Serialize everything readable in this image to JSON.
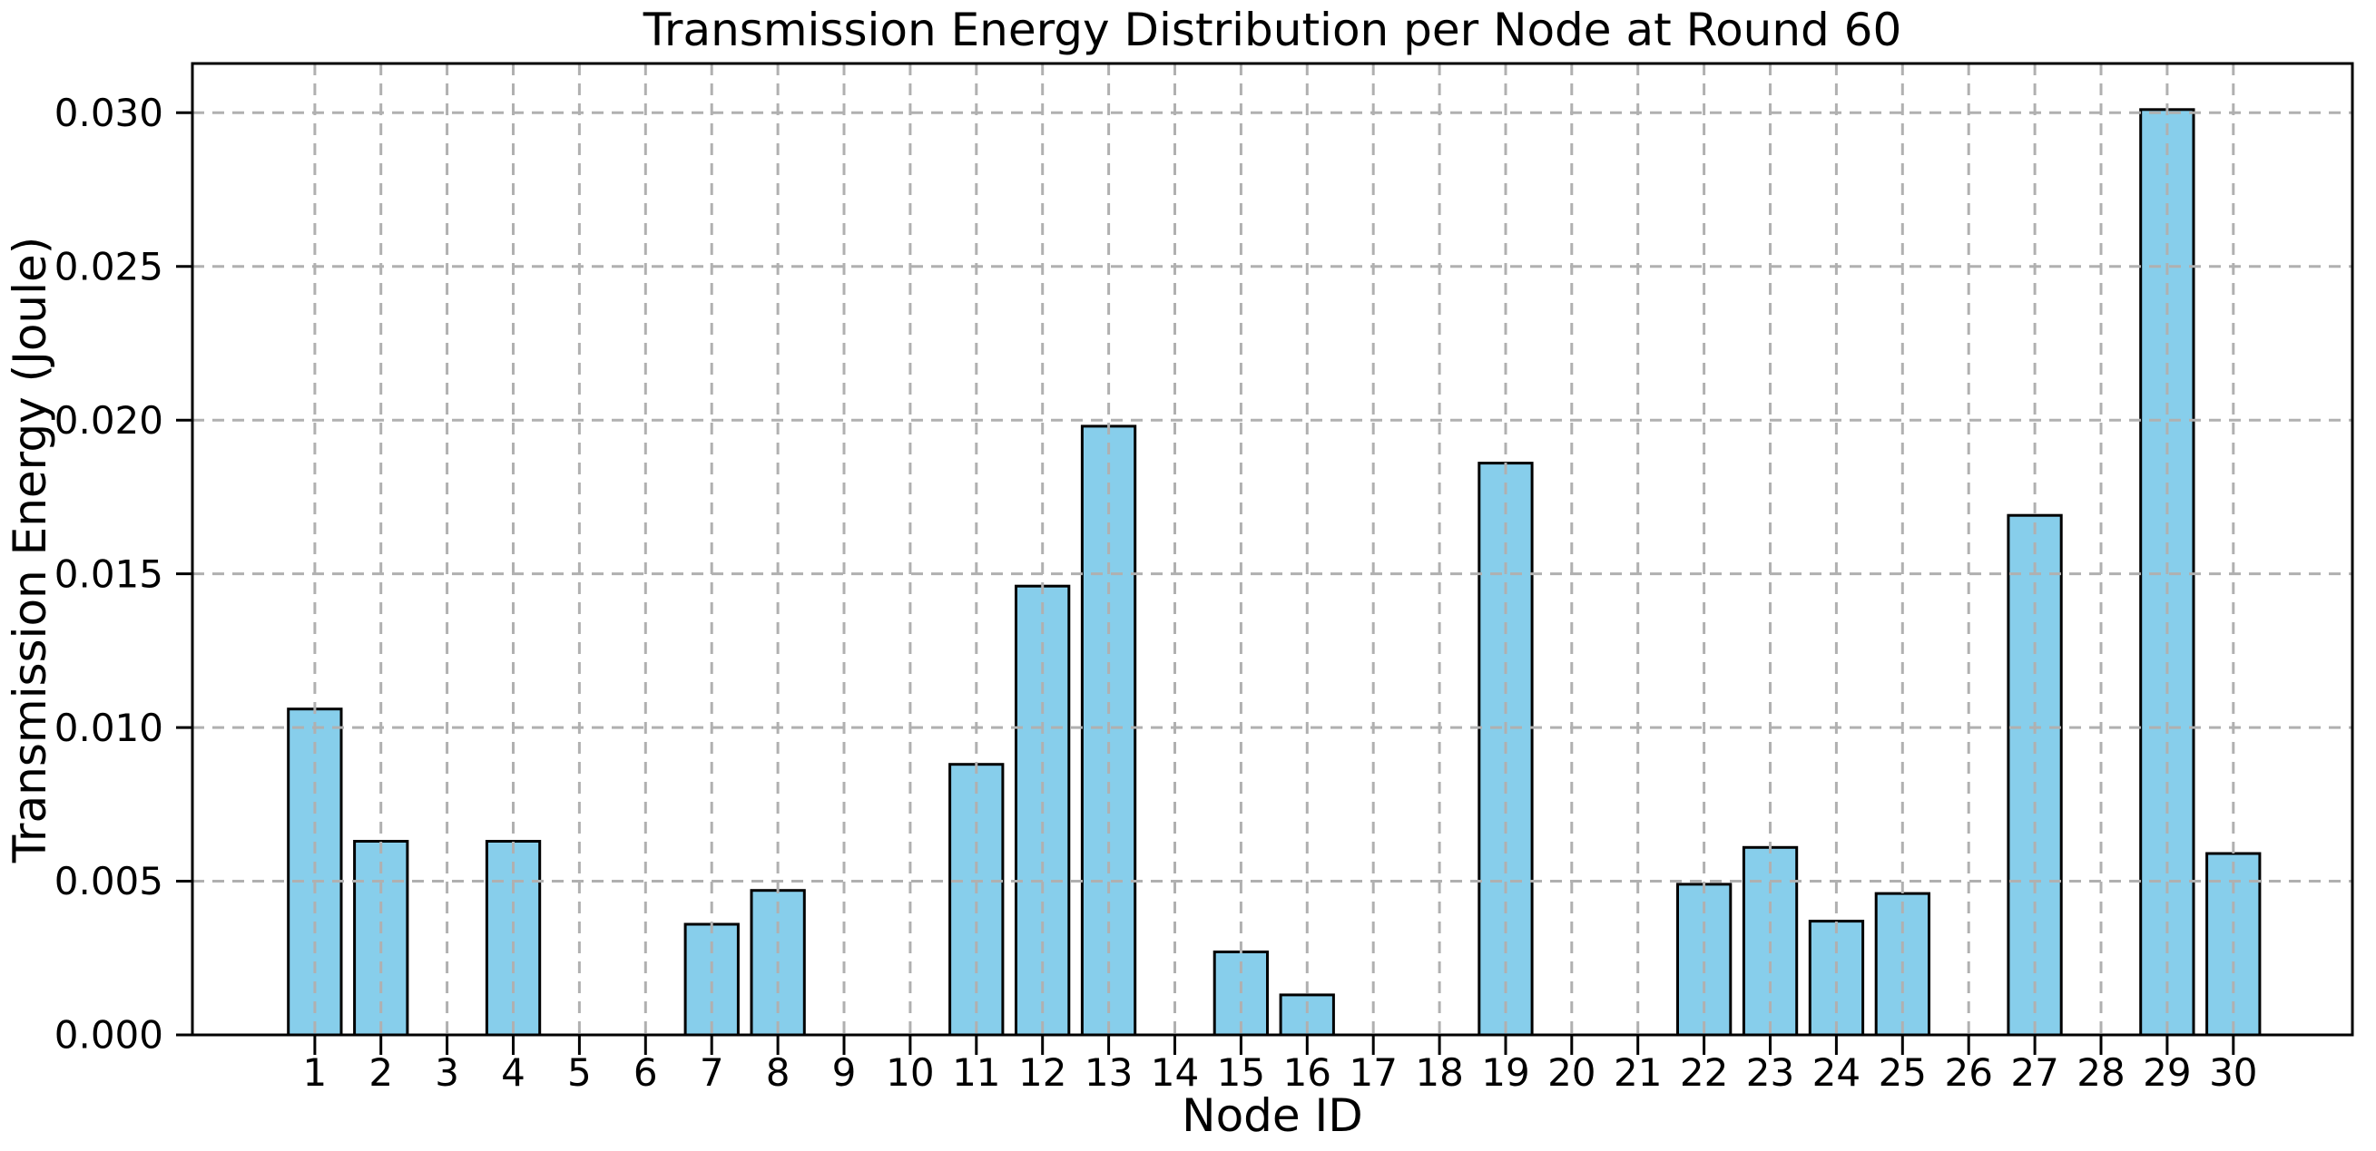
{
  "figure": {
    "title": "Transmission Energy Distribution per Node at Round 60",
    "xlabel": "Node ID",
    "ylabel": "Transmission Energy (Joule)"
  },
  "chart_data": {
    "type": "bar",
    "title": "Transmission Energy Distribution per Node at Round 60",
    "xlabel": "Node ID",
    "ylabel": "Transmission Energy (Joule)",
    "categories": [
      1,
      2,
      3,
      4,
      5,
      6,
      7,
      8,
      9,
      10,
      11,
      12,
      13,
      14,
      15,
      16,
      17,
      18,
      19,
      20,
      21,
      22,
      23,
      24,
      25,
      26,
      27,
      28,
      29,
      30
    ],
    "values": [
      0.0106,
      0.0063,
      0,
      0.0063,
      0,
      0,
      0.0036,
      0.0047,
      0,
      0,
      0.0088,
      0.0146,
      0.0198,
      0,
      0.0027,
      0.0013,
      0,
      0,
      0.0186,
      0,
      0,
      0.0049,
      0.0061,
      0.0037,
      0.0046,
      0,
      0.0169,
      0,
      0.0301,
      0.0059
    ],
    "yticks": [
      0,
      0.005,
      0.01,
      0.015,
      0.02,
      0.025,
      0.03
    ],
    "ytick_labels": [
      "0.000",
      "0.005",
      "0.010",
      "0.015",
      "0.020",
      "0.025",
      "0.030"
    ],
    "xtick_labels": [
      "1",
      "2",
      "3",
      "4",
      "5",
      "6",
      "7",
      "8",
      "9",
      "10",
      "11",
      "12",
      "13",
      "14",
      "15",
      "16",
      "17",
      "18",
      "19",
      "20",
      "21",
      "22",
      "23",
      "24",
      "25",
      "26",
      "27",
      "28",
      "29",
      "30"
    ],
    "ylim": [
      0,
      0.0316
    ],
    "xlim": [
      -0.85,
      31.8
    ],
    "bar_width_ratio": 0.8,
    "legend": null,
    "grid": {
      "axis": "both",
      "style": "dashed",
      "drawn_above_bars": true
    }
  },
  "style": {
    "bar_fill": "#87CEEB",
    "bar_edge": "#000000",
    "grid_color": "#b0b0b0",
    "axis_color": "#000000",
    "text_color": "#000000",
    "background": "#ffffff"
  }
}
